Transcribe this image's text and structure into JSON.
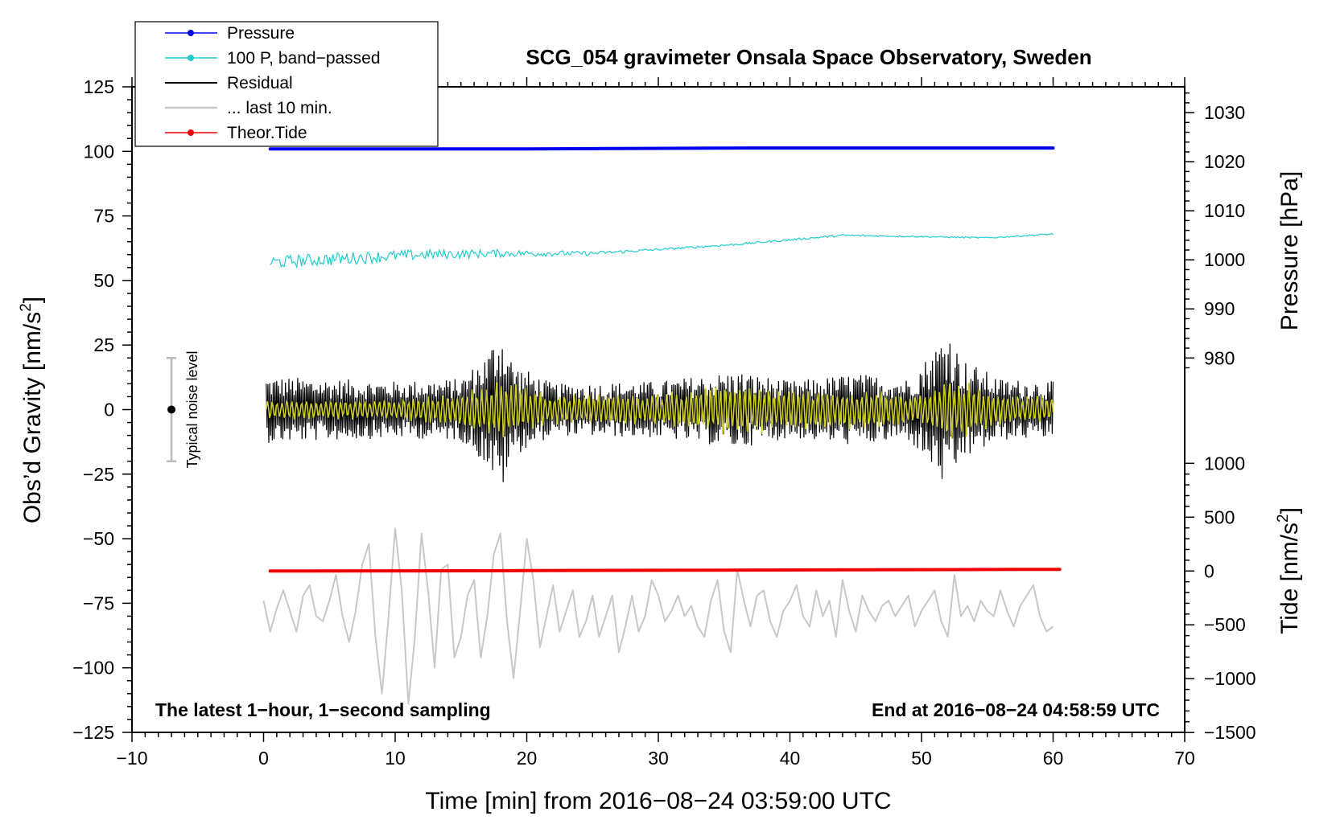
{
  "chart_data": {
    "type": "line",
    "title": "SCG_054 gravimeter Onsala Space Observatory, Sweden",
    "xlabel": "Time [min] from 2016−08−24 03:59:00 UTC",
    "ylabel": "Obs’d Gravity [nm/s2]",
    "ylabel_main": "Obs’d Gravity [nm/s",
    "ylabel_sup": "2",
    "ylabel_close": "]",
    "y2label": "Pressure [hPa]",
    "y3label": "Tide [nm/s2]",
    "y3label_main": "Tide [nm/s",
    "y3label_sup": "2",
    "y3label_close": "]",
    "xlim": [
      -10,
      70
    ],
    "ylim": [
      -125,
      125
    ],
    "pressure_axis": {
      "ticks": [
        980,
        990,
        1000,
        1010,
        1020,
        1030
      ],
      "tick_labels": [
        "980",
        "990",
        "1000",
        "1010",
        "1020",
        "1030"
      ],
      "gravity_at_980": 20,
      "gravity_per_hPa": 1.9
    },
    "tide_axis": {
      "ticks": [
        -1500,
        -1000,
        -500,
        0,
        500,
        1000
      ],
      "tick_labels": [
        "−1500",
        "−1000",
        "−500",
        "0",
        "500",
        "1000"
      ],
      "gravity_at_0": -62.5,
      "gravity_per_unit": 0.0417
    },
    "x_ticks": [
      -10,
      0,
      10,
      20,
      30,
      40,
      50,
      60,
      70
    ],
    "x_tick_labels": [
      "−10",
      "0",
      "10",
      "20",
      "30",
      "40",
      "50",
      "60",
      "70"
    ],
    "y_ticks": [
      -125,
      -100,
      -75,
      -50,
      -25,
      0,
      25,
      50,
      75,
      100,
      125
    ],
    "y_tick_labels": [
      "−125",
      "−100",
      "−75",
      "−50",
      "−25",
      "0",
      "25",
      "50",
      "75",
      "100",
      "125"
    ],
    "legend": [
      {
        "label": "Pressure",
        "color": "#0000ee",
        "marker": true
      },
      {
        "label": "100 P, band−passed",
        "color": "#22cccc",
        "marker": true
      },
      {
        "label": "Residual",
        "color": "#000000",
        "marker": false
      },
      {
        "label": "... last 10 min.",
        "color": "#c8c8c8",
        "marker": false
      },
      {
        "label": "Theor.Tide",
        "color": "#ee0000",
        "marker": true
      }
    ],
    "legend_position": "top-left",
    "annotations": {
      "left": "The latest 1−hour, 1−second sampling",
      "right": "End at 2016−08−24 04:58:59 UTC"
    },
    "noise_level": {
      "label": "Typical noise level",
      "x": -7,
      "center": 0,
      "low": -20,
      "high": 20
    },
    "series": [
      {
        "name": "Pressure",
        "color": "#0000ee",
        "unit": "hPa",
        "x": [
          0.5,
          10,
          20,
          27,
          37,
          50,
          60
        ],
        "values": [
          1022.6,
          1022.6,
          1022.6,
          1022.7,
          1022.8,
          1022.8,
          1022.8
        ]
      },
      {
        "name": "100 P, band-passed",
        "color": "#22cccc",
        "unit": "nm/s2",
        "trend_x": [
          0.5,
          6,
          12,
          18,
          25,
          30,
          36,
          44,
          50,
          55,
          60
        ],
        "trend": [
          57,
          58.5,
          60,
          60.5,
          60.5,
          62,
          64,
          67.5,
          67,
          66.5,
          68
        ],
        "noise_amplitude": [
          2.5,
          2.5,
          2,
          1.5,
          0.8,
          0.4,
          0.4,
          0.4,
          0.3,
          0.3,
          0.3
        ]
      },
      {
        "name": "Residual",
        "color": "#000000",
        "unit": "nm/s2",
        "envelope_x": [
          0,
          5,
          10,
          15,
          17,
          18,
          19,
          22,
          30,
          36,
          40,
          45,
          49,
          51,
          52,
          53,
          56,
          60
        ],
        "envelope": [
          13,
          12,
          11,
          12,
          22,
          33,
          18,
          10,
          11,
          15,
          11,
          14,
          12,
          24,
          33,
          20,
          12,
          11
        ],
        "x_range": [
          0.2,
          60
        ]
      },
      {
        "name": "Residual (smoothed)",
        "color": "#cccc22",
        "unit": "nm/s2",
        "envelope_x": [
          0,
          10,
          15,
          18,
          22,
          30,
          36,
          40,
          45,
          50,
          52,
          56,
          60
        ],
        "envelope": [
          4,
          4,
          7,
          12,
          6,
          7,
          11,
          8,
          8,
          6,
          13,
          7,
          5
        ],
        "x_range": [
          0.2,
          60
        ]
      },
      {
        "name": "... last 10 min.",
        "color": "#c8c8c8",
        "unit": "nm/s2",
        "x": [
          0,
          0.5,
          1,
          1.5,
          2,
          2.5,
          3,
          3.5,
          4,
          4.5,
          5,
          5.5,
          6,
          6.5,
          7,
          7.5,
          8,
          8.5,
          9,
          9.5,
          10,
          10.5,
          11,
          11.5,
          12,
          12.5,
          13,
          13.5,
          14,
          14.5,
          15,
          15.5,
          16,
          16.5,
          17,
          17.5,
          18,
          18.5,
          19,
          19.5,
          20,
          20.5,
          21,
          21.5,
          22,
          22.5,
          23,
          23.5,
          24,
          24.5,
          25,
          25.5,
          26,
          26.5,
          27,
          27.5,
          28,
          28.5,
          29,
          29.5,
          30,
          30.5,
          31,
          31.5,
          32,
          32.5,
          33,
          33.5,
          34,
          34.5,
          35,
          35.5,
          36,
          36.5,
          37,
          37.5,
          38,
          38.5,
          39,
          39.5,
          40,
          40.5,
          41,
          41.5,
          42,
          42.5,
          43,
          43.5,
          44,
          44.5,
          45,
          45.5,
          46,
          46.5,
          47,
          47.5,
          48,
          48.5,
          49,
          49.5,
          50,
          50.5,
          51,
          51.5,
          52,
          52.5,
          53,
          53.5,
          54,
          54.5,
          55,
          55.5,
          56,
          56.5,
          57,
          57.5,
          58,
          58.5,
          59,
          59.5,
          60
        ],
        "values": [
          -74,
          -86,
          -77,
          -70,
          -78,
          -86,
          -72,
          -68,
          -80,
          -82,
          -74,
          -64,
          -80,
          -90,
          -78,
          -60,
          -52,
          -88,
          -110,
          -80,
          -46,
          -70,
          -114,
          -88,
          -48,
          -70,
          -100,
          -62,
          -60,
          -96,
          -88,
          -72,
          -66,
          -96,
          -80,
          -56,
          -48,
          -82,
          -104,
          -78,
          -50,
          -66,
          -92,
          -80,
          -68,
          -86,
          -78,
          -70,
          -88,
          -82,
          -72,
          -88,
          -80,
          -72,
          -94,
          -84,
          -72,
          -86,
          -80,
          -66,
          -72,
          -82,
          -78,
          -72,
          -80,
          -76,
          -84,
          -88,
          -74,
          -66,
          -86,
          -94,
          -62,
          -74,
          -84,
          -72,
          -70,
          -82,
          -88,
          -78,
          -74,
          -68,
          -80,
          -84,
          -70,
          -80,
          -74,
          -88,
          -66,
          -78,
          -86,
          -72,
          -78,
          -82,
          -76,
          -74,
          -80,
          -76,
          -72,
          -84,
          -78,
          -74,
          -70,
          -82,
          -88,
          -64,
          -80,
          -76,
          -82,
          -74,
          -78,
          -80,
          -70,
          -78,
          -84,
          -76,
          -72,
          -68,
          -80,
          -86,
          -84
        ]
      },
      {
        "name": "Theor.Tide",
        "color": "#ee0000",
        "unit": "nm/s2",
        "x": [
          0.5,
          10,
          20,
          30,
          40,
          50,
          60.5
        ],
        "values": [
          0,
          1,
          3,
          6,
          9,
          12,
          15
        ]
      }
    ]
  }
}
